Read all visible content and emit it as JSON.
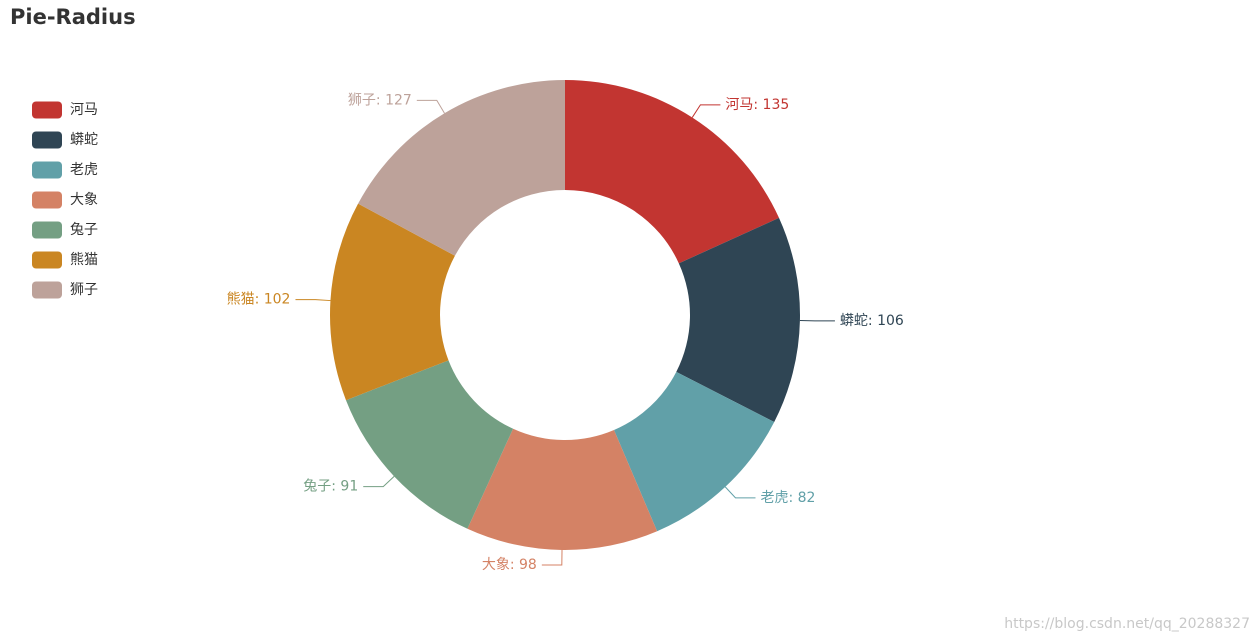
{
  "chart_data": {
    "type": "pie",
    "title": "Pie-Radius",
    "categories": [
      "河马",
      "蟒蛇",
      "老虎",
      "大象",
      "兔子",
      "熊猫",
      "狮子"
    ],
    "values": [
      135,
      106,
      82,
      98,
      91,
      102,
      127
    ],
    "value_labels": [
      "河马: 135",
      "蟒蛇: 106",
      "老虎: 82",
      "大象: 98",
      "兔子: 91",
      "熊猫: 102",
      "狮子: 127"
    ],
    "colors": [
      "#c23531",
      "#2f4554",
      "#61a0a8",
      "#d48265",
      "#749f83",
      "#ca8622",
      "#bda29a"
    ],
    "legend": "left",
    "watermark": "https://blog.csdn.net/qq_20288327"
  }
}
